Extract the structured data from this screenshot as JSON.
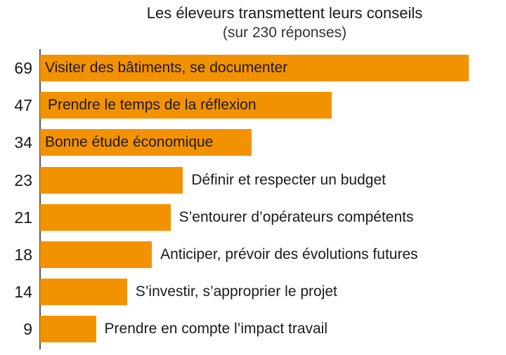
{
  "chart_data": {
    "type": "bar",
    "orientation": "horizontal",
    "title": "Les éleveurs transmettent leurs conseils",
    "subtitle": "(sur 230 réponses)",
    "categories": [
      "Visiter des bâtiments, se documenter",
      "Prendre le temps de la réflexion",
      "Bonne étude économique",
      "Définir et respecter un budget",
      "S’entourer d’opérateurs compétents",
      "Anticiper, prévoir des évolutions futures",
      "S’investir, s’approprier le projet",
      "Prendre en compte l’impact travail"
    ],
    "values": [
      69,
      47,
      34,
      23,
      21,
      18,
      14,
      9
    ],
    "xlabel": "",
    "ylabel": "",
    "grid": false,
    "legend": null,
    "bar_color": "#f39200"
  },
  "rows": [
    {
      "value": "69",
      "label": "Visiter des bâtiments, se documenter"
    },
    {
      "value": "47",
      "label": "Prendre le temps de la réflexion"
    },
    {
      "value": "34",
      "label": "Bonne étude économique"
    },
    {
      "value": "23",
      "label": "Définir et respecter un budget"
    },
    {
      "value": "21",
      "label": "S’entourer d’opérateurs compétents"
    },
    {
      "value": "18",
      "label": "Anticiper, prévoir des évolutions futures"
    },
    {
      "value": "14",
      "label": "S’investir, s’approprier le projet"
    },
    {
      "value": "9",
      "label": "Prendre en compte l’impact travail"
    }
  ]
}
